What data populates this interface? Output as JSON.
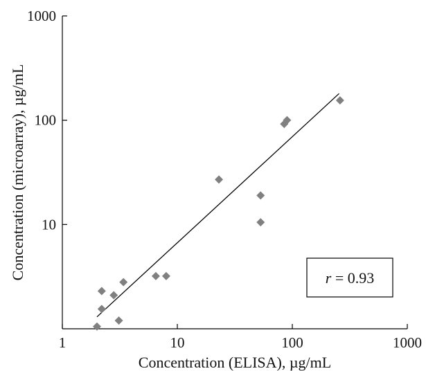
{
  "chart_data": {
    "type": "scatter",
    "title": "",
    "xlabel": "Concentration (ELISA),  µg/mL",
    "ylabel": "Concentration (microarray),  µg/mL",
    "x_scale": "log",
    "y_scale": "log",
    "xlim": [
      1,
      1000
    ],
    "ylim": [
      1,
      1000
    ],
    "x_ticks": [
      "1",
      "10",
      "100",
      "1000"
    ],
    "y_ticks": [
      "10",
      "100",
      "1000"
    ],
    "grid": false,
    "marker": "diamond",
    "marker_color": "#808080",
    "points": [
      {
        "x": 2.0,
        "y": 1.05
      },
      {
        "x": 2.2,
        "y": 2.3
      },
      {
        "x": 2.2,
        "y": 1.55
      },
      {
        "x": 2.8,
        "y": 2.1
      },
      {
        "x": 3.1,
        "y": 1.2
      },
      {
        "x": 3.4,
        "y": 2.8
      },
      {
        "x": 6.5,
        "y": 3.2
      },
      {
        "x": 8.0,
        "y": 3.2
      },
      {
        "x": 23,
        "y": 27
      },
      {
        "x": 53,
        "y": 19
      },
      {
        "x": 53,
        "y": 10.5
      },
      {
        "x": 85,
        "y": 92
      },
      {
        "x": 90,
        "y": 100
      },
      {
        "x": 260,
        "y": 155
      }
    ],
    "trend_line": {
      "x": [
        2.0,
        255
      ],
      "y": [
        1.3,
        180
      ],
      "color": "#000000"
    },
    "annotation": {
      "prefix": "r",
      "text": " = 0.93"
    }
  }
}
